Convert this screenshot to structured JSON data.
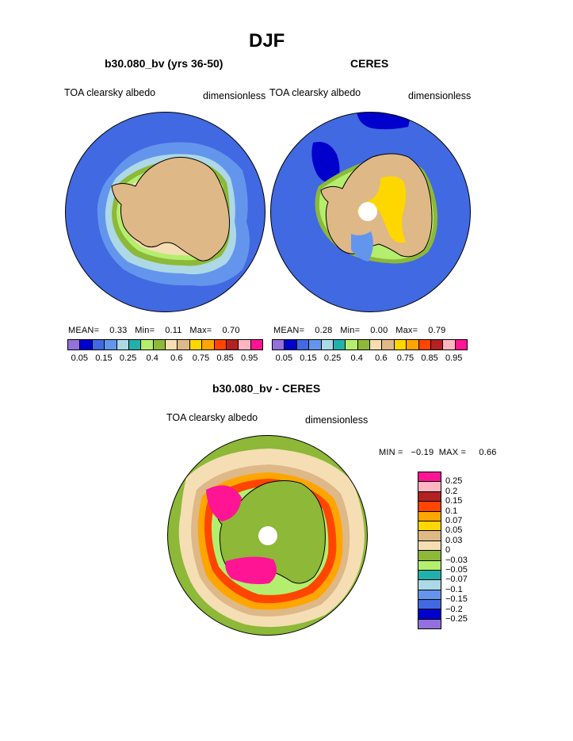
{
  "figure_title": "DJF",
  "panels": [
    {
      "title": "b30.080_bv (yrs 36-50)",
      "variable": "TOA clearsky albedo",
      "units": "dimensionless",
      "mean_label": "MEAN=",
      "mean": "0.33",
      "min_label": "Min=",
      "min": "0.11",
      "max_label": "Max=",
      "max": "0.70",
      "colorbar_ticks": [
        "0.05",
        "0.15",
        "0.25",
        "0.4",
        "0.6",
        "0.75",
        "0.85",
        "0.95"
      ],
      "colorbar_colors": [
        "#9370DB",
        "#0000CD",
        "#4169E1",
        "#6495ED",
        "#ADD8E6",
        "#20B2AA",
        "#B4EE6E",
        "#8DB838",
        "#F5DEB3",
        "#DEB887",
        "#FFD700",
        "#FFA500",
        "#FF4500",
        "#B22222",
        "#FFB6C1",
        "#FF1493"
      ]
    },
    {
      "title": "CERES",
      "variable": "TOA clearsky albedo",
      "units": "dimensionless",
      "mean_label": "MEAN=",
      "mean": "0.28",
      "min_label": "Min=",
      "min": "0.00",
      "max_label": "Max=",
      "max": "0.79",
      "colorbar_ticks": [
        "0.05",
        "0.15",
        "0.25",
        "0.4",
        "0.6",
        "0.75",
        "0.85",
        "0.95"
      ],
      "colorbar_colors": [
        "#9370DB",
        "#0000CD",
        "#4169E1",
        "#6495ED",
        "#ADD8E6",
        "#20B2AA",
        "#B4EE6E",
        "#8DB838",
        "#F5DEB3",
        "#DEB887",
        "#FFD700",
        "#FFA500",
        "#FF4500",
        "#B22222",
        "#FFB6C1",
        "#FF1493"
      ]
    },
    {
      "title": "b30.080_bv - CERES",
      "variable": "TOA clearsky albedo",
      "units": "dimensionless",
      "min_label": "MIN =",
      "min": "−0.19",
      "max_label": "MAX =",
      "max": "0.66",
      "colorbar_ticks": [
        "0.25",
        "0.2",
        "0.15",
        "0.1",
        "0.07",
        "0.05",
        "0.03",
        "0",
        "−0.03",
        "−0.05",
        "−0.07",
        "−0.1",
        "−0.15",
        "−0.2",
        "−0.25"
      ],
      "colorbar_colors": [
        "#FF1493",
        "#FFB6C1",
        "#B22222",
        "#FF4500",
        "#FFA500",
        "#FFD700",
        "#DEB887",
        "#F5DEB3",
        "#8DB838",
        "#B4EE6E",
        "#20B2AA",
        "#ADD8E6",
        "#6495ED",
        "#4169E1",
        "#0000CD",
        "#9370DB"
      ]
    }
  ],
  "map_colors": {
    "ocean": "#4169E1",
    "land": "#DEB887",
    "ice_edge_1": "#6495ED",
    "ice_edge_2": "#ADD8E6",
    "ice_edge_3": "#8DB838",
    "ice_edge_4": "#B4EE6E",
    "ice_edge_5": "#F5DEB3",
    "high_albedo": "#FFD700",
    "low_albedo": "#0000CD",
    "diff_background": "#8DB838",
    "diff_pos_1": "#F5DEB3",
    "diff_pos_2": "#FFA500",
    "diff_pos_3": "#FF4500",
    "diff_pos_4": "#FF1493",
    "pole_hole": "#FFFFFF"
  }
}
